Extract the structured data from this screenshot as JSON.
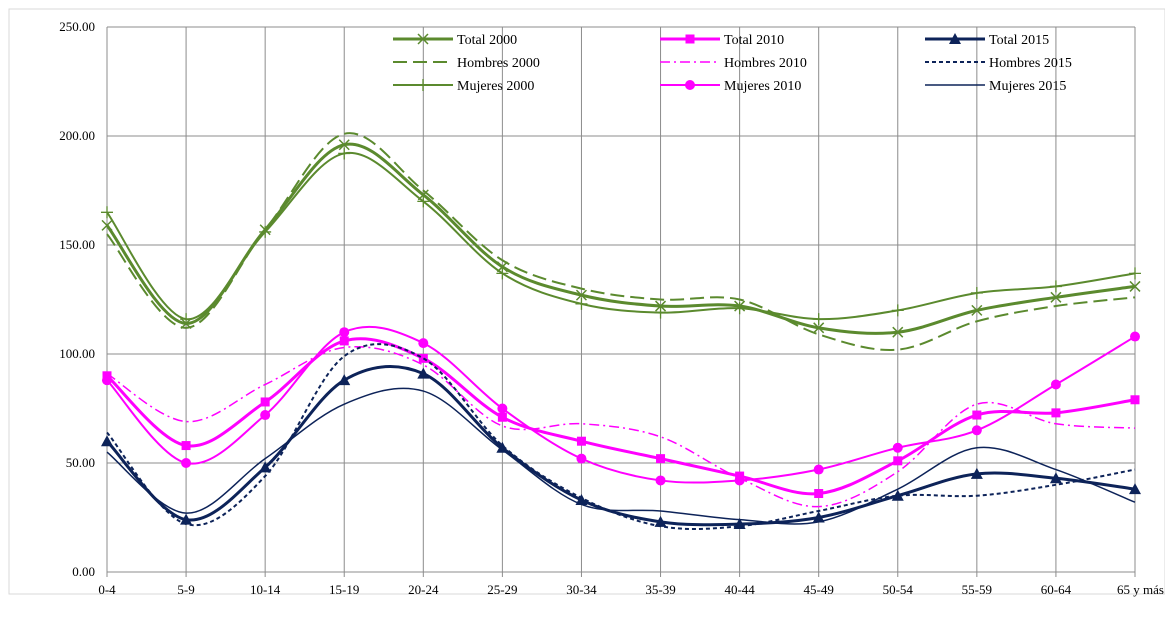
{
  "chart_data": {
    "type": "line",
    "title": "",
    "xlabel": "",
    "ylabel": "",
    "categories": [
      "0-4",
      "5-9",
      "10-14",
      "15-19",
      "20-24",
      "25-29",
      "30-34",
      "35-39",
      "40-44",
      "45-49",
      "50-54",
      "55-59",
      "60-64",
      "65 y más"
    ],
    "ylim": [
      0,
      250
    ],
    "yticks": [
      "0.00",
      "50.00",
      "100.00",
      "150.00",
      "200.00",
      "250.00"
    ],
    "grid": true,
    "legend_position": "top-right",
    "series": [
      {
        "name": "Total 2000",
        "color": "#5b8a2e",
        "dash": "solid",
        "width": 3,
        "marker": "x",
        "values": [
          159,
          114,
          157,
          196,
          173,
          140,
          127,
          122,
          122,
          112,
          110,
          120,
          126,
          131
        ]
      },
      {
        "name": "Hombres 2000",
        "color": "#5b8a2e",
        "dash": "long-dash",
        "width": 2,
        "marker": "none",
        "values": [
          155,
          112,
          157,
          201,
          175,
          143,
          130,
          125,
          125,
          109,
          102,
          115,
          122,
          126
        ]
      },
      {
        "name": "Mujeres 2000",
        "color": "#5b8a2e",
        "dash": "solid",
        "width": 2,
        "marker": "plus",
        "values": [
          165,
          116,
          156,
          192,
          170,
          137,
          123,
          119,
          121,
          116,
          120,
          128,
          131,
          137
        ]
      },
      {
        "name": "Total 2010",
        "color": "#ff00ff",
        "dash": "solid",
        "width": 3,
        "marker": "square",
        "values": [
          90,
          58,
          78,
          106,
          98,
          71,
          60,
          52,
          44,
          36,
          51,
          72,
          73,
          79
        ]
      },
      {
        "name": "Hombres 2010",
        "color": "#ff00ff",
        "dash": "dash-dot",
        "width": 1.5,
        "marker": "none",
        "values": [
          91,
          69,
          86,
          103,
          95,
          67,
          68,
          62,
          43,
          30,
          46,
          77,
          68,
          66
        ]
      },
      {
        "name": "Mujeres 2010",
        "color": "#ff00ff",
        "dash": "solid",
        "width": 2,
        "marker": "circle",
        "values": [
          88,
          50,
          72,
          110,
          105,
          75,
          52,
          42,
          42,
          47,
          57,
          65,
          86,
          108
        ]
      },
      {
        "name": "Total 2015",
        "color": "#0d2359",
        "dash": "solid",
        "width": 3,
        "marker": "triangle",
        "values": [
          60,
          24,
          48,
          88,
          91,
          57,
          33,
          23,
          22,
          25,
          35,
          45,
          43,
          38
        ]
      },
      {
        "name": "Hombres 2015",
        "color": "#0d2359",
        "dash": "short-dash",
        "width": 2,
        "marker": "none",
        "values": [
          64,
          22,
          44,
          99,
          98,
          58,
          34,
          21,
          21,
          28,
          35,
          35,
          40,
          47
        ]
      },
      {
        "name": "Mujeres 2015",
        "color": "#0d2359",
        "dash": "solid",
        "width": 1.5,
        "marker": "none",
        "values": [
          55,
          27,
          52,
          77,
          83,
          56,
          31,
          28,
          24,
          23,
          38,
          57,
          47,
          32
        ]
      }
    ]
  }
}
